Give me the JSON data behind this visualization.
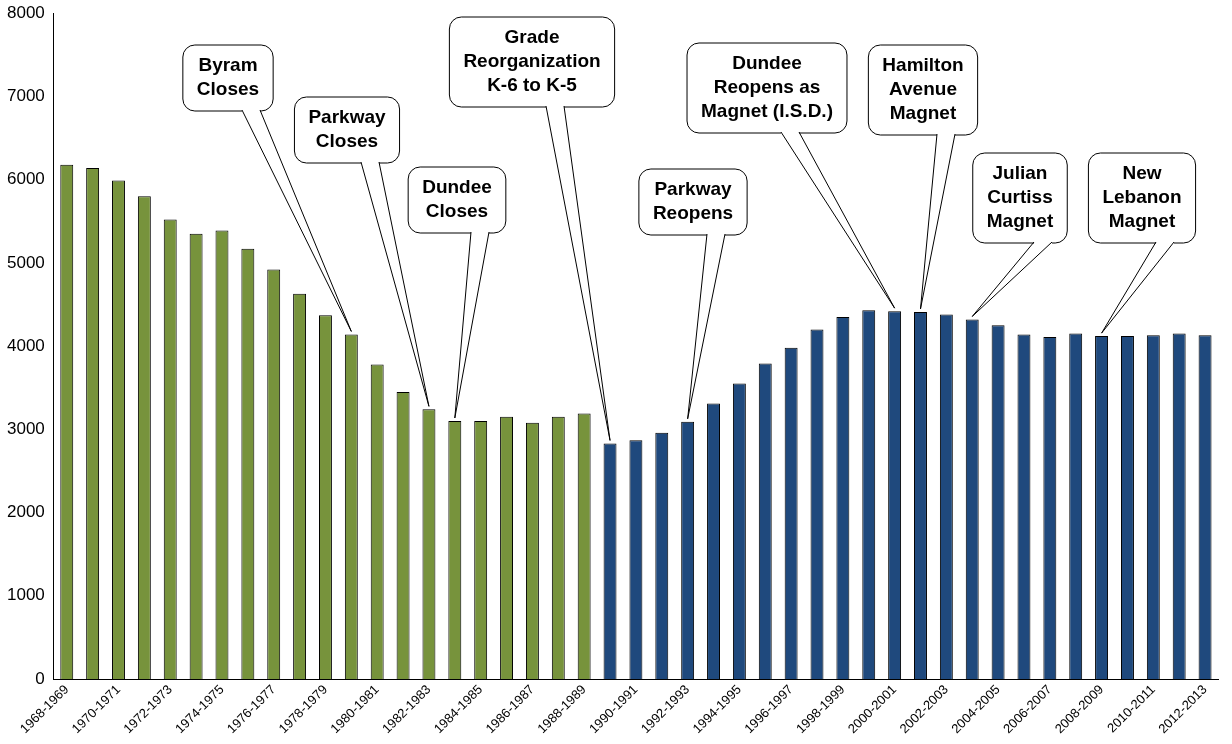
{
  "chart_data": {
    "type": "bar",
    "categories": [
      "1968-1969",
      null,
      "1970-1971",
      null,
      "1972-1973",
      null,
      "1974-1975",
      null,
      "1976-1977",
      null,
      "1978-1979",
      null,
      "1980-1981",
      null,
      "1982-1983",
      null,
      "1984-1985",
      null,
      "1986-1987",
      null,
      "1988-1989",
      null,
      "1990-1991",
      null,
      "1992-1993",
      null,
      "1994-1995",
      null,
      "1996-1997",
      null,
      "1998-1999",
      null,
      "2000-2001",
      null,
      "2002-2003",
      null,
      "2004-2005",
      null,
      "2006-2007",
      null,
      "2008-2009",
      null,
      "2010-2011",
      null,
      "2012-2013"
    ],
    "values": [
      6180,
      6140,
      5990,
      5800,
      5520,
      5350,
      5390,
      5170,
      4920,
      4630,
      4370,
      4140,
      3780,
      3450,
      3240,
      3100,
      3100,
      3150,
      3080,
      3150,
      3190,
      2830,
      2870,
      2960,
      3090,
      3310,
      3550,
      3790,
      3980,
      4200,
      4350,
      4430,
      4420,
      4410,
      4380,
      4320,
      4250,
      4140,
      4110,
      4150,
      4120,
      4120,
      4130,
      4150,
      4130
    ],
    "colors": [
      "#77933c",
      "#77933c",
      "#77933c",
      "#77933c",
      "#77933c",
      "#77933c",
      "#77933c",
      "#77933c",
      "#77933c",
      "#77933c",
      "#77933c",
      "#77933c",
      "#77933c",
      "#77933c",
      "#77933c",
      "#77933c",
      "#77933c",
      "#77933c",
      "#77933c",
      "#77933c",
      "#77933c",
      "#1f497d",
      "#1f497d",
      "#1f497d",
      "#1f497d",
      "#1f497d",
      "#1f497d",
      "#1f497d",
      "#1f497d",
      "#1f497d",
      "#1f497d",
      "#1f497d",
      "#1f497d",
      "#1f497d",
      "#1f497d",
      "#1f497d",
      "#1f497d",
      "#1f497d",
      "#1f497d",
      "#1f497d",
      "#1f497d",
      "#1f497d",
      "#1f497d",
      "#1f497d",
      "#1f497d"
    ],
    "ylim": [
      0,
      8000
    ],
    "yticks": [
      0,
      1000,
      2000,
      3000,
      4000,
      5000,
      6000,
      7000,
      8000
    ],
    "grid": false,
    "legend": false,
    "annotations": [
      "Byram\nCloses",
      "Parkway\nCloses",
      "Dundee\nCloses",
      "Grade\nReorganization\nK-6 to K-5",
      "Parkway\nReopens",
      "Dundee\nReopens as\nMagnet (I.S.D.)",
      "Hamilton\nAvenue\nMagnet",
      "Julian\nCurtiss\nMagnet",
      "New\nLebanon\nMagnet"
    ]
  }
}
